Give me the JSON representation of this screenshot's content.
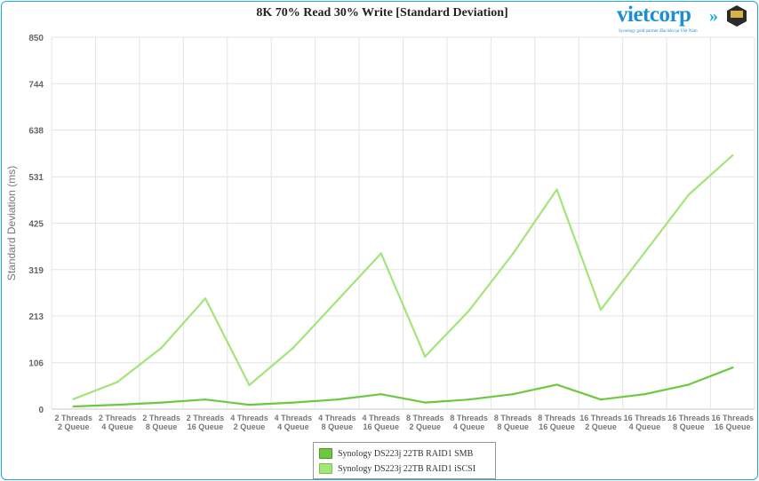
{
  "chart_data": {
    "type": "line",
    "title": "8K 70% Read 30% Write [Standard Deviation]",
    "ylabel": "Standard Deviation (ms)",
    "xlabel": "",
    "ylim": [
      0,
      850
    ],
    "yticks": [
      "0",
      "106",
      "213",
      "319",
      "425",
      "531",
      "638",
      "744",
      "850"
    ],
    "categories": [
      [
        "2 Threads",
        "2 Queue"
      ],
      [
        "2 Threads",
        "4 Queue"
      ],
      [
        "2 Threads",
        "8 Queue"
      ],
      [
        "2 Threads",
        "16 Queue"
      ],
      [
        "4 Threads",
        "2 Queue"
      ],
      [
        "4 Threads",
        "4 Queue"
      ],
      [
        "4 Threads",
        "8 Queue"
      ],
      [
        "4 Threads",
        "16 Queue"
      ],
      [
        "8 Threads",
        "2 Queue"
      ],
      [
        "8 Threads",
        "4 Queue"
      ],
      [
        "8 Threads",
        "8 Queue"
      ],
      [
        "8 Threads",
        "16 Queue"
      ],
      [
        "16 Threads",
        "2 Queue"
      ],
      [
        "16 Threads",
        "4 Queue"
      ],
      [
        "16 Threads",
        "8 Queue"
      ],
      [
        "16 Threads",
        "16 Queue"
      ]
    ],
    "series": [
      {
        "name": "Synology DS223j 22TB RAID1 SMB",
        "color": "#6cc93f",
        "values": [
          6,
          10,
          15,
          22,
          10,
          15,
          22,
          34,
          15,
          22,
          34,
          56,
          22,
          34,
          56,
          95
        ]
      },
      {
        "name": "Synology DS223j 22TB RAID1 iSCSI",
        "color": "#a2e579",
        "values": [
          23,
          62,
          140,
          253,
          55,
          140,
          248,
          356,
          120,
          225,
          355,
          502,
          227,
          358,
          490,
          580
        ]
      }
    ],
    "grid": true,
    "legend_position": "bottom-center"
  },
  "logo": {
    "word": "vietcorp",
    "arrows": "»",
    "tagline": "Synology gold partner đầu tiên tại Việt Nam"
  }
}
